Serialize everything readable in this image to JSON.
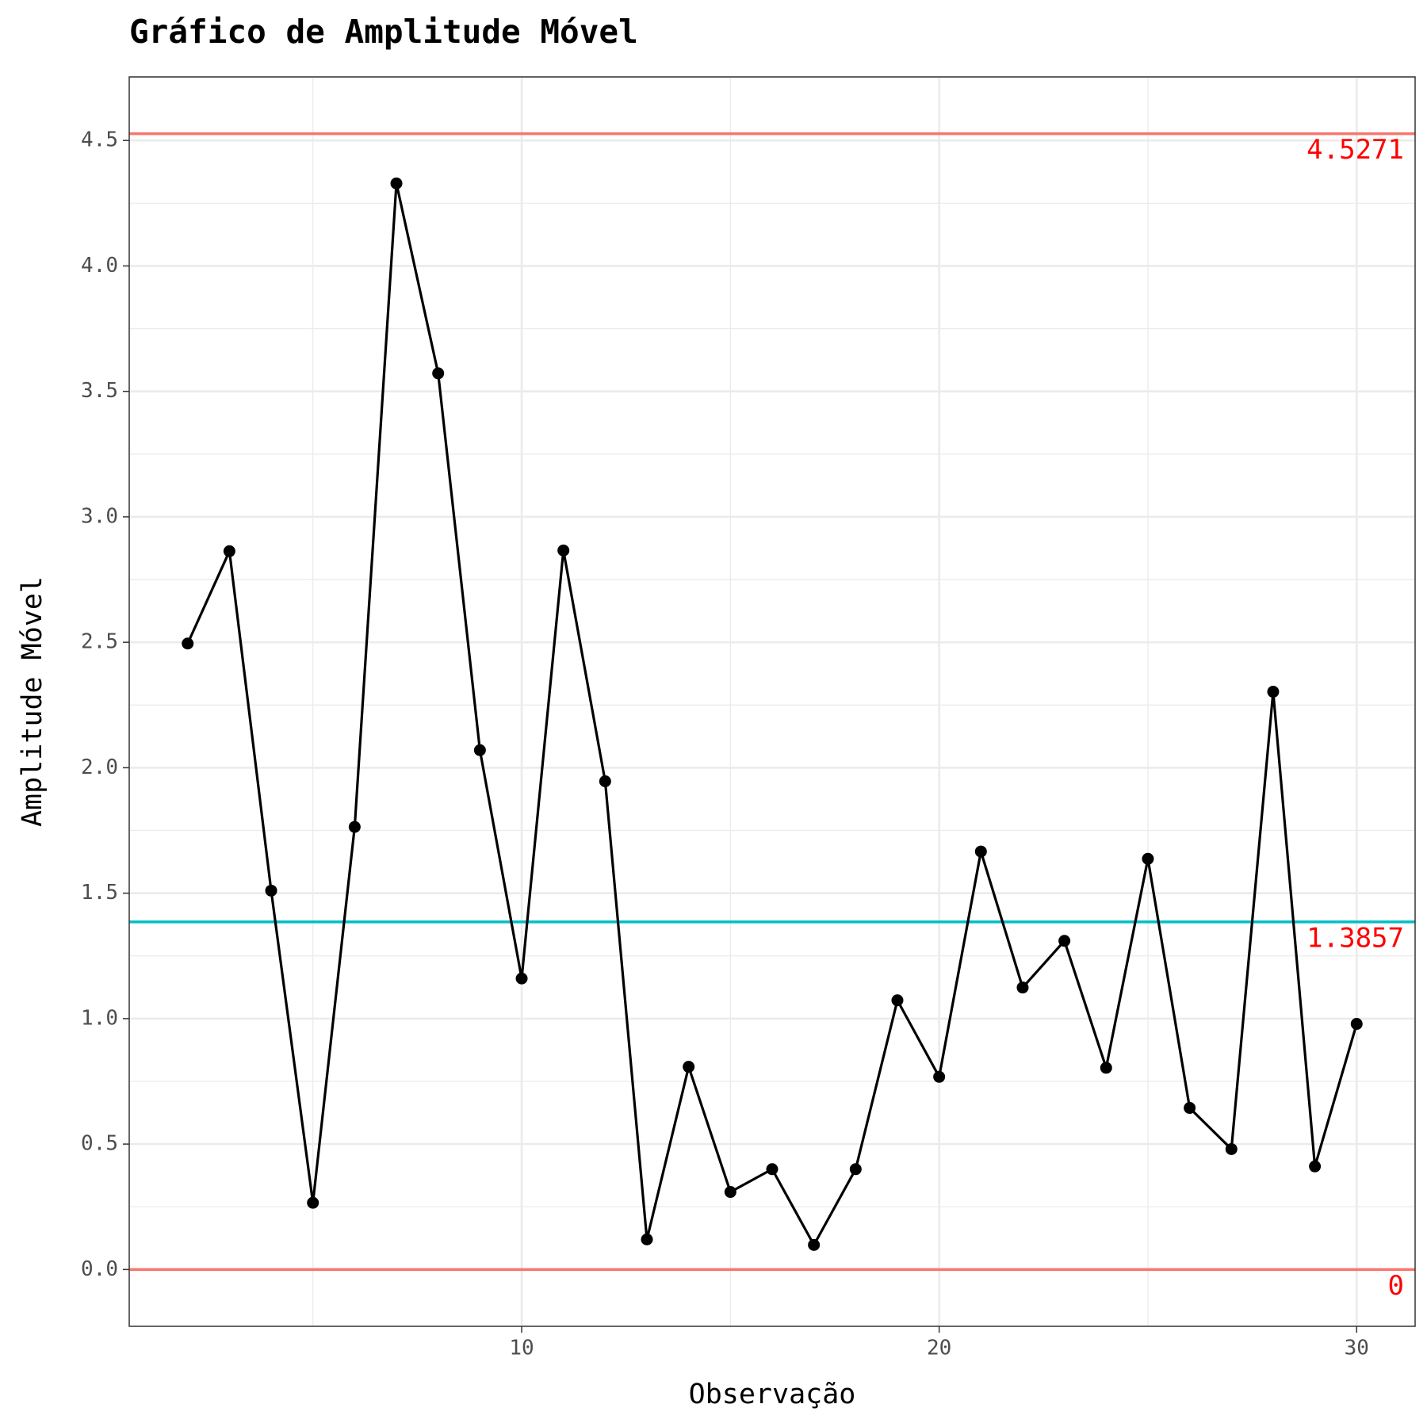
{
  "chart_data": {
    "type": "line",
    "title": "Gráfico de Amplitude Móvel",
    "x_label": "Observação",
    "y_label": "Amplitude Móvel",
    "x": [
      2,
      3,
      4,
      5,
      6,
      7,
      8,
      9,
      10,
      11,
      12,
      13,
      14,
      15,
      16,
      17,
      18,
      19,
      20,
      21,
      22,
      23,
      24,
      25,
      26,
      27,
      28,
      29,
      30
    ],
    "series": [
      {
        "color": "#000000",
        "values": [
          2.495,
          2.863,
          1.51,
          0.266,
          1.764,
          4.329,
          3.572,
          2.07,
          1.16,
          2.866,
          1.946,
          0.12,
          0.808,
          0.309,
          0.4,
          0.098,
          0.4,
          1.073,
          0.768,
          1.666,
          1.124,
          1.31,
          0.804,
          1.637,
          0.644,
          0.48,
          2.303,
          0.411,
          0.979
        ]
      }
    ],
    "reference_lines": [
      {
        "value": 4.5271,
        "color": "#f8766d"
      },
      {
        "value": 1.3857,
        "color": "#00bfc4"
      },
      {
        "value": 0,
        "color": "#f8766d"
      }
    ],
    "reference_label_color": "#ff0000",
    "xlim": [
      0.6,
      31.4
    ],
    "xticks": [
      10,
      20,
      30
    ],
    "ylim": [
      -0.2264,
      4.7535
    ],
    "yticks": [
      {
        "value": 0,
        "label": "0.0"
      },
      {
        "value": 0.5,
        "label": "0.5"
      },
      {
        "value": 1,
        "label": "1.0"
      },
      {
        "value": 1.5,
        "label": "1.5"
      },
      {
        "value": 2,
        "label": "2.0"
      },
      {
        "value": 2.5,
        "label": "2.5"
      },
      {
        "value": 3,
        "label": "3.0"
      },
      {
        "value": 3.5,
        "label": "3.5"
      },
      {
        "value": 4,
        "label": "4.0"
      },
      {
        "value": 4.5,
        "label": "4.5"
      }
    ],
    "grid": true
  }
}
